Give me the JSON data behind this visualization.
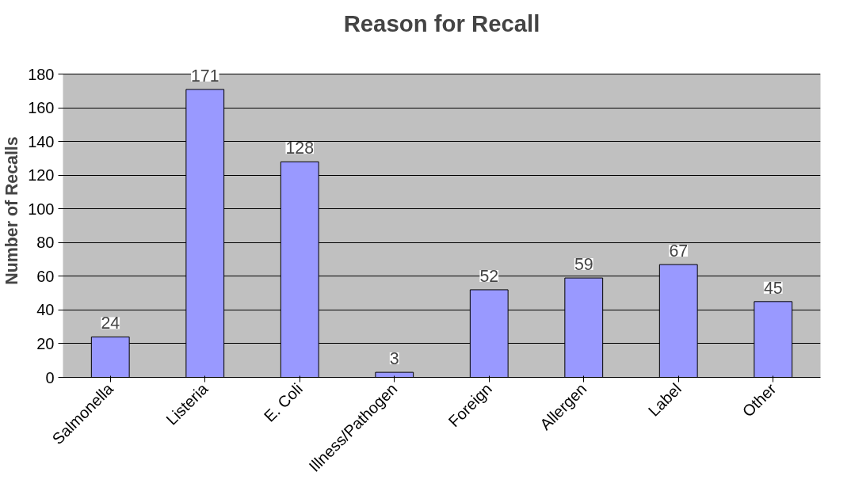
{
  "chart_data": {
    "type": "bar",
    "title": "Reason for Recall",
    "ylabel": "Number of Recalls",
    "categories": [
      "Salmonella",
      "Listeria",
      "E. Coli",
      "Illness/Pathogen",
      "Foreign",
      "Allergen",
      "Label",
      "Other"
    ],
    "values": [
      24,
      171,
      128,
      3,
      52,
      59,
      67,
      45
    ],
    "color": "#9999ff",
    "ylim": [
      0,
      180
    ],
    "yticks": [
      0,
      20,
      40,
      60,
      80,
      100,
      120,
      140,
      160,
      180
    ],
    "grid": "y",
    "data_labels": true
  }
}
